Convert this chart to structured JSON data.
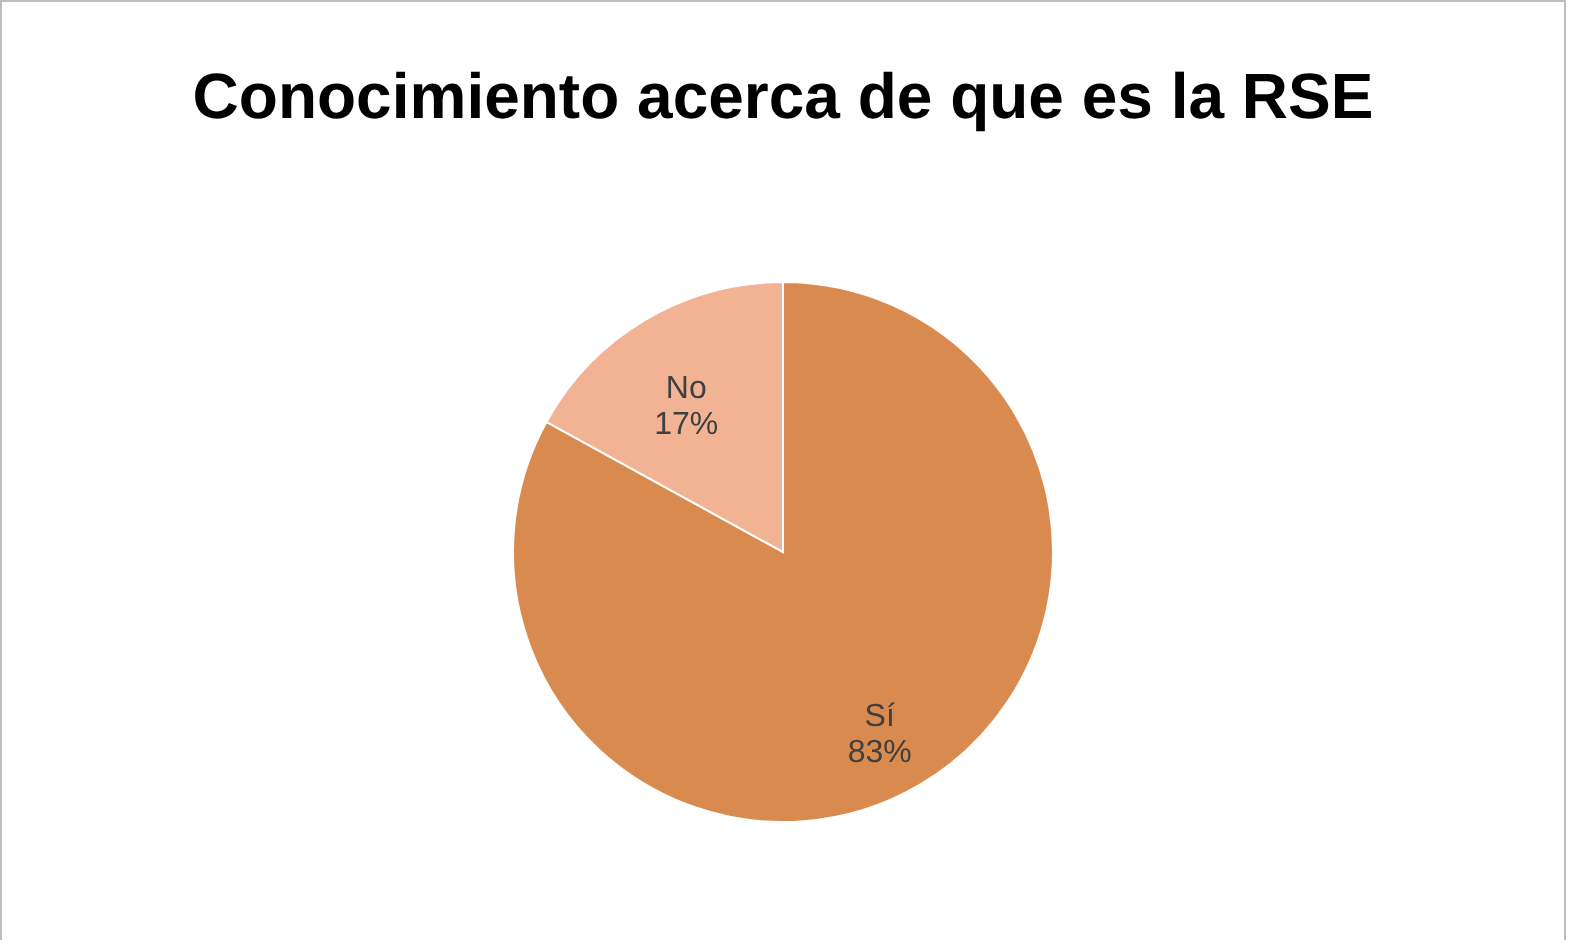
{
  "chart_data": {
    "type": "pie",
    "title": "Conocimiento acerca de que es la RSE",
    "categories": [
      "Sí",
      "No"
    ],
    "values": [
      83,
      17
    ],
    "value_labels": [
      "83%",
      "17%"
    ],
    "colors": [
      "#d98a4e",
      "#f2b394"
    ]
  }
}
